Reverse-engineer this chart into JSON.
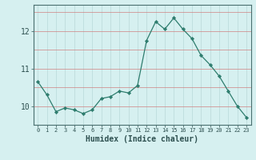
{
  "xlabel": "Humidex (Indice chaleur)",
  "ylabel": "",
  "x": [
    0,
    1,
    2,
    3,
    4,
    5,
    6,
    7,
    8,
    9,
    10,
    11,
    12,
    13,
    14,
    15,
    16,
    17,
    18,
    19,
    20,
    21,
    22,
    23
  ],
  "y": [
    10.65,
    10.3,
    9.85,
    9.95,
    9.9,
    9.8,
    9.9,
    10.2,
    10.25,
    10.4,
    10.35,
    10.55,
    11.75,
    12.25,
    12.05,
    12.35,
    12.05,
    11.8,
    11.35,
    11.1,
    10.8,
    10.4,
    10.0,
    9.7
  ],
  "line_color": "#2e7d6e",
  "marker": "D",
  "marker_size": 2.2,
  "bg_color": "#d6f0f0",
  "grid_color_h": "#d08080",
  "grid_color_v": "#b8d8d8",
  "ylim": [
    9.5,
    12.7
  ],
  "yticks": [
    10,
    11,
    12
  ],
  "xlim": [
    -0.5,
    23.5
  ],
  "xticks": [
    0,
    1,
    2,
    3,
    4,
    5,
    6,
    7,
    8,
    9,
    10,
    11,
    12,
    13,
    14,
    15,
    16,
    17,
    18,
    19,
    20,
    21,
    22,
    23
  ],
  "xlabel_fontsize": 7,
  "ytick_fontsize": 7,
  "xtick_fontsize": 5.0
}
